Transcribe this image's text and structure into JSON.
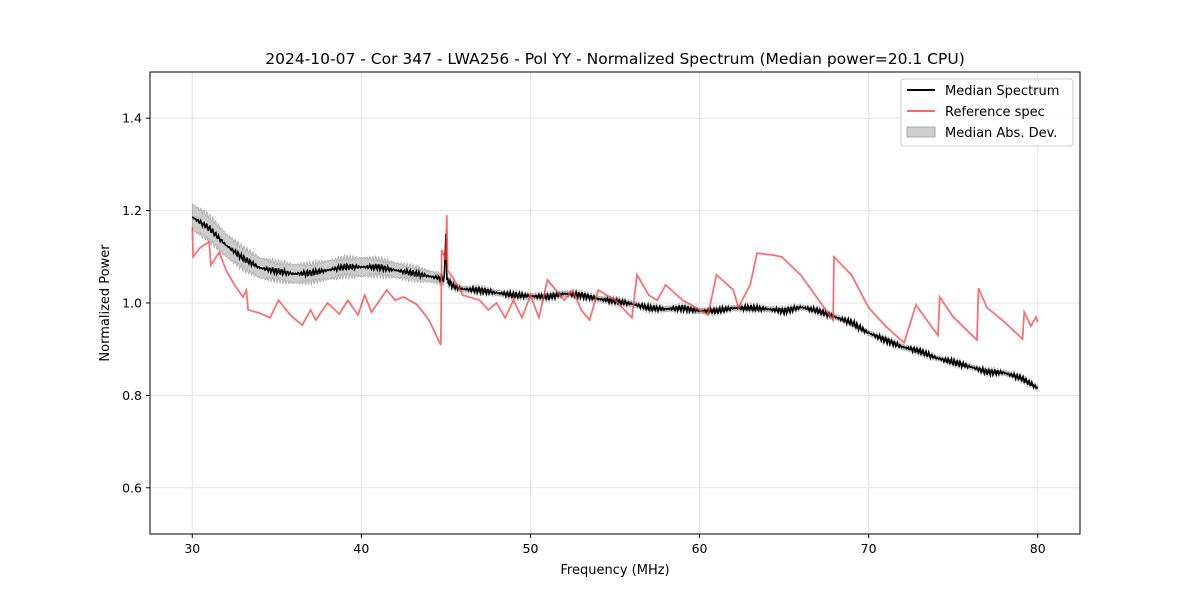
{
  "chart_data": {
    "type": "line",
    "title": "2024-10-07 - Cor 347 - LWA256 - Pol YY - Normalized Spectrum (Median power=20.1 CPU)",
    "xlabel": "Frequency (MHz)",
    "ylabel": "Normalized Power",
    "xlim": [
      27.5,
      82.5
    ],
    "ylim": [
      0.5,
      1.5
    ],
    "xticks": [
      30,
      40,
      50,
      60,
      70,
      80
    ],
    "xtick_labels": [
      "30",
      "40",
      "50",
      "60",
      "70",
      "80"
    ],
    "yticks": [
      0.6,
      0.8,
      1.0,
      1.2,
      1.4
    ],
    "ytick_labels": [
      "0.6",
      "0.8",
      "1.0",
      "1.2",
      "1.4"
    ],
    "grid": true,
    "legend_position": "top-right",
    "legend": [
      "Median Spectrum",
      "Reference spec",
      "Median Abs. Dev."
    ],
    "colors": {
      "median": "#000000",
      "reference": "#ff5555",
      "mad": "#b0b0b0"
    },
    "series": [
      {
        "name": "Median Spectrum",
        "x": [
          30,
          31,
          32,
          33,
          34,
          35,
          36,
          37,
          38,
          39,
          40,
          41,
          42,
          43,
          44,
          44.9,
          45.0,
          45.05,
          45.5,
          46,
          47,
          48,
          49,
          50,
          51,
          52,
          53,
          54,
          55,
          56,
          57,
          58,
          59,
          60,
          61,
          62,
          63,
          64,
          65,
          66,
          67,
          68,
          69,
          70,
          71,
          72,
          73,
          74,
          75,
          76,
          77,
          78,
          79,
          80
        ],
        "y": [
          1.186,
          1.162,
          1.125,
          1.097,
          1.076,
          1.069,
          1.063,
          1.065,
          1.071,
          1.078,
          1.078,
          1.078,
          1.071,
          1.065,
          1.058,
          1.052,
          1.15,
          1.05,
          1.035,
          1.03,
          1.028,
          1.022,
          1.017,
          1.015,
          1.013,
          1.02,
          1.017,
          1.009,
          1.004,
          0.998,
          0.989,
          0.987,
          0.989,
          0.983,
          0.983,
          0.989,
          0.989,
          0.987,
          0.983,
          0.991,
          0.983,
          0.97,
          0.957,
          0.935,
          0.92,
          0.905,
          0.896,
          0.881,
          0.872,
          0.862,
          0.851,
          0.849,
          0.838,
          0.816
        ]
      },
      {
        "name": "Reference spec",
        "x": [
          30,
          30.05,
          30.5,
          31,
          31.1,
          31.6,
          32,
          32.5,
          33,
          33.2,
          33.3,
          34,
          34.6,
          35.1,
          35.8,
          36.5,
          37,
          37.3,
          38,
          38.7,
          39.2,
          39.8,
          40.2,
          40.6,
          41.5,
          42,
          42.5,
          43.3,
          44,
          44.7,
          44.75,
          45,
          45.05,
          45.1,
          45.5,
          46,
          47,
          47.5,
          48,
          48.5,
          49,
          49.5,
          50,
          50.5,
          51,
          52,
          52.5,
          53,
          53.5,
          54,
          55,
          56,
          56.3,
          57,
          57.5,
          58,
          59,
          59.5,
          60.5,
          61,
          62,
          62.3,
          63,
          63.4,
          64.3,
          64.85,
          66,
          67.9,
          67.95,
          69,
          70,
          71,
          72.1,
          72.8,
          73.5,
          74.1,
          74.2,
          75,
          76.4,
          76.5,
          77,
          78,
          79.1,
          79.2,
          79.6,
          79.9,
          80
        ],
        "y": [
          1.164,
          1.1,
          1.121,
          1.132,
          1.082,
          1.11,
          1.071,
          1.039,
          1.013,
          1.028,
          0.985,
          0.978,
          0.968,
          1.006,
          0.974,
          0.952,
          0.985,
          0.963,
          1.0,
          0.976,
          1.006,
          0.974,
          1.017,
          0.98,
          1.028,
          1.006,
          1.013,
          0.996,
          0.963,
          0.909,
          1.115,
          1.093,
          1.19,
          1.071,
          1.05,
          1.017,
          1.006,
          0.985,
          1.0,
          0.968,
          1.006,
          0.968,
          1.017,
          0.968,
          1.05,
          1.006,
          1.028,
          0.985,
          0.963,
          1.028,
          1.006,
          0.968,
          1.061,
          1.017,
          1.006,
          1.039,
          1.006,
          0.996,
          0.974,
          1.061,
          1.028,
          0.99,
          1.04,
          1.108,
          1.104,
          1.1,
          1.06,
          0.963,
          1.1,
          1.06,
          0.99,
          0.95,
          0.914,
          0.996,
          0.96,
          0.93,
          1.013,
          0.97,
          0.92,
          1.032,
          0.99,
          0.96,
          0.922,
          0.98,
          0.95,
          0.97,
          0.959
        ]
      },
      {
        "name": "Median Abs. Dev.",
        "x": [
          30,
          35,
          40,
          44,
          46,
          80
        ],
        "halfwidth": [
          0.028,
          0.02,
          0.02,
          0.012,
          0.006,
          0.005
        ]
      }
    ]
  }
}
